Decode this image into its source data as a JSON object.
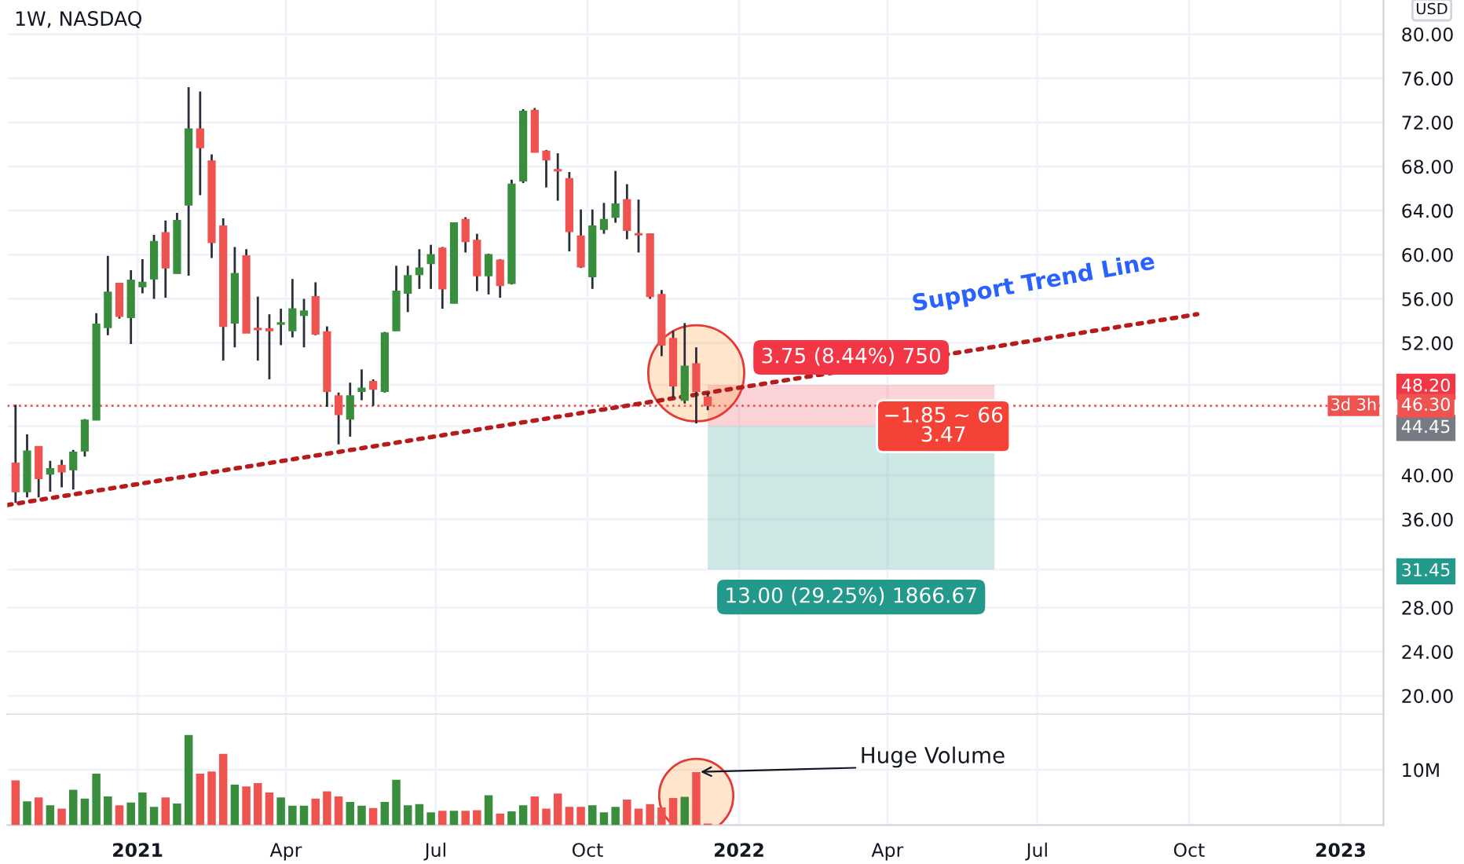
{
  "chart_data": [
    {
      "type": "candlestick",
      "title": "1W, NASDAQ",
      "x": [
        "2020-10-19",
        "2020-10-26",
        "2020-11-02",
        "2020-11-09",
        "2020-11-16",
        "2020-11-23",
        "2020-11-30",
        "2020-12-07",
        "2020-12-14",
        "2020-12-21",
        "2020-12-28",
        "2021-01-04",
        "2021-01-11",
        "2021-01-18",
        "2021-01-25",
        "2021-02-01",
        "2021-02-08",
        "2021-02-15",
        "2021-02-22",
        "2021-03-01",
        "2021-03-08",
        "2021-03-15",
        "2021-03-22",
        "2021-03-29",
        "2021-04-05",
        "2021-04-12",
        "2021-04-19",
        "2021-04-26",
        "2021-05-03",
        "2021-05-10",
        "2021-05-17",
        "2021-05-24",
        "2021-05-31",
        "2021-06-07",
        "2021-06-14",
        "2021-06-21",
        "2021-06-28",
        "2021-07-05",
        "2021-07-12",
        "2021-07-19",
        "2021-07-26",
        "2021-08-02",
        "2021-08-09",
        "2021-08-16",
        "2021-08-23",
        "2021-08-30",
        "2021-09-06",
        "2021-09-13",
        "2021-09-20",
        "2021-09-27",
        "2021-10-04",
        "2021-10-11",
        "2021-10-18",
        "2021-10-25",
        "2021-11-01",
        "2021-11-08",
        "2021-11-15",
        "2021-11-22",
        "2021-11-29",
        "2021-12-06",
        "2021-12-13"
      ],
      "ohlc": [
        [
          41.1,
          46.4,
          37.5,
          38.5
        ],
        [
          38.5,
          43.7,
          38.0,
          42.2
        ],
        [
          42.6,
          42.6,
          38.0,
          39.7
        ],
        [
          40.1,
          41.3,
          38.5,
          40.6
        ],
        [
          40.9,
          41.4,
          38.9,
          40.3
        ],
        [
          40.5,
          42.3,
          38.7,
          42.1
        ],
        [
          42.2,
          45.1,
          41.7,
          45.0
        ],
        [
          45.0,
          54.7,
          45.0,
          53.7
        ],
        [
          53.4,
          59.9,
          52.7,
          56.6
        ],
        [
          57.4,
          57.4,
          54.2,
          54.4
        ],
        [
          54.3,
          58.6,
          51.9,
          57.7
        ],
        [
          57.1,
          59.6,
          56.5,
          57.5
        ],
        [
          57.8,
          61.8,
          56.0,
          61.2
        ],
        [
          62.0,
          63.1,
          56.1,
          58.8
        ],
        [
          58.3,
          63.8,
          58.3,
          63.1
        ],
        [
          64.5,
          75.2,
          58.1,
          71.4
        ],
        [
          71.4,
          74.8,
          65.4,
          69.7
        ],
        [
          68.5,
          69.1,
          59.7,
          61.1
        ],
        [
          62.6,
          63.3,
          50.4,
          53.5
        ],
        [
          53.8,
          60.7,
          51.6,
          58.3
        ],
        [
          59.9,
          60.5,
          52.9,
          52.9
        ],
        [
          53.3,
          56.2,
          50.4,
          53.2
        ],
        [
          53.3,
          54.6,
          48.7,
          53.1
        ],
        [
          53.7,
          55.1,
          51.8,
          53.8
        ],
        [
          53.1,
          57.8,
          52.5,
          55.1
        ],
        [
          54.5,
          56.0,
          51.6,
          54.9
        ],
        [
          56.2,
          57.5,
          52.7,
          52.8
        ],
        [
          53.0,
          53.5,
          46.2,
          47.6
        ],
        [
          47.2,
          47.5,
          42.8,
          45.5
        ],
        [
          45.1,
          48.4,
          43.5,
          47.2
        ],
        [
          47.6,
          49.6,
          46.8,
          47.9
        ],
        [
          48.5,
          48.7,
          46.3,
          47.8
        ],
        [
          47.6,
          53.0,
          47.5,
          52.9
        ],
        [
          53.1,
          59.0,
          53.1,
          56.7
        ],
        [
          56.5,
          59.0,
          54.8,
          58.1
        ],
        [
          58.2,
          60.5,
          56.9,
          58.8
        ],
        [
          59.2,
          60.9,
          56.9,
          60.0
        ],
        [
          60.6,
          60.7,
          55.1,
          56.9
        ],
        [
          55.6,
          62.9,
          55.6,
          62.9
        ],
        [
          63.2,
          63.4,
          60.2,
          61.2
        ],
        [
          61.3,
          61.9,
          56.7,
          58.1
        ],
        [
          58.1,
          60.1,
          56.4,
          60.0
        ],
        [
          59.5,
          59.6,
          56.1,
          57.2
        ],
        [
          57.4,
          66.8,
          57.3,
          66.4
        ],
        [
          66.7,
          73.2,
          66.5,
          73.0
        ],
        [
          73.1,
          73.3,
          69.3,
          69.3
        ],
        [
          69.4,
          69.5,
          66.1,
          68.6
        ],
        [
          67.7,
          69.2,
          64.9,
          67.6
        ],
        [
          66.9,
          67.5,
          60.3,
          62.1
        ],
        [
          61.7,
          64.1,
          58.8,
          58.9
        ],
        [
          58.0,
          64.1,
          56.9,
          62.6
        ],
        [
          62.3,
          64.7,
          61.9,
          63.2
        ],
        [
          63.4,
          67.6,
          62.9,
          64.6
        ],
        [
          65.0,
          66.4,
          61.4,
          62.2
        ],
        [
          61.9,
          65.0,
          60.2,
          61.8
        ],
        [
          61.9,
          61.9,
          56.0,
          56.2
        ],
        [
          56.4,
          56.8,
          50.8,
          51.8
        ],
        [
          52.4,
          53.1,
          47.0,
          48.1
        ],
        [
          46.8,
          53.8,
          46.5,
          49.9
        ],
        [
          50.1,
          51.6,
          44.7,
          47.6
        ],
        [
          47.1,
          47.5,
          45.9,
          46.3
        ]
      ],
      "colors": [
        "#ef5350",
        "#388e3c",
        "#ef5350",
        "#388e3c",
        "#ef5350",
        "#388e3c",
        "#388e3c",
        "#388e3c",
        "#388e3c",
        "#ef5350",
        "#388e3c",
        "#388e3c",
        "#388e3c",
        "#ef5350",
        "#388e3c",
        "#388e3c",
        "#ef5350",
        "#ef5350",
        "#ef5350",
        "#388e3c",
        "#ef5350",
        "#ef5350",
        "#ef5350",
        "#388e3c",
        "#388e3c",
        "#388e3c",
        "#ef5350",
        "#ef5350",
        "#ef5350",
        "#388e3c",
        "#388e3c",
        "#ef5350",
        "#388e3c",
        "#388e3c",
        "#388e3c",
        "#388e3c",
        "#388e3c",
        "#ef5350",
        "#388e3c",
        "#ef5350",
        "#ef5350",
        "#388e3c",
        "#ef5350",
        "#388e3c",
        "#388e3c",
        "#ef5350",
        "#ef5350",
        "#ef5350",
        "#ef5350",
        "#ef5350",
        "#388e3c",
        "#388e3c",
        "#388e3c",
        "#ef5350",
        "#ef5350",
        "#ef5350",
        "#ef5350",
        "#ef5350",
        "#388e3c",
        "#ef5350",
        "#ef5350"
      ],
      "series": [
        {
          "type": "line",
          "x": [
            "2020-10-14",
            "2022-10-06"
          ],
          "values": [
            37.3,
            54.6
          ],
          "color": "#b71c1c",
          "line_style": "dotted"
        },
        {
          "type": "bar",
          "name": "3.75 (8.44%) 750",
          "x": [
            "2022-03-10"
          ],
          "base": [
            44.45
          ],
          "values": [
            3.75
          ],
          "color": "#f23645"
        },
        {
          "type": "bar",
          "name": "13.00 (29.25%) 1866.67",
          "x": [
            "2022-03-10"
          ],
          "base": [
            31.45
          ],
          "values": [
            13.0
          ],
          "color": "#22998a"
        }
      ],
      "xlim": [
        "2020-10-14",
        "2023-01-27"
      ],
      "xticks": [
        "2021-01-01",
        "2021-04-01",
        "2021-07-01",
        "2021-10-01",
        "2022-01-01",
        "2022-04-01",
        "2022-07-01",
        "2022-10-01",
        "2023-01-01"
      ],
      "ylim": [
        18.3,
        83.1
      ],
      "yticks": [
        {
          "value": 20,
          "label": "20.00"
        },
        {
          "value": 24,
          "label": "24.00"
        },
        {
          "value": 28,
          "label": "28.00"
        },
        {
          "value": 31.45,
          "label": "31.45"
        },
        {
          "value": 36,
          "label": "36.00"
        },
        {
          "value": 40,
          "label": "40.00"
        },
        {
          "value": 44.45,
          "label": "44.45"
        },
        {
          "value": 48.2,
          "label": "48.20"
        },
        {
          "value": 52,
          "label": "52.00"
        },
        {
          "value": 56,
          "label": "56.00"
        },
        {
          "value": 60,
          "label": "60.00"
        },
        {
          "value": 64,
          "label": "64.00"
        },
        {
          "value": 68,
          "label": "68.00"
        },
        {
          "value": 72,
          "label": "72.00"
        },
        {
          "value": 76,
          "label": "76.00"
        },
        {
          "value": 80,
          "label": "80.00"
        }
      ],
      "ref_lines": [
        {
          "axis": "y",
          "value": 46.3,
          "label": "46.30",
          "color": "#ef5350",
          "line_style": "dotted"
        }
      ],
      "annotations": [
        "Support Trend Line",
        {
          "text": "−1.85 ~ 66\n3.47",
          "x": "2022-05-05",
          "y": 44.45
        },
        "3d 3h",
        "USD"
      ],
      "grid": true,
      "tick_labels": "y"
    },
    {
      "type": "bar",
      "x": [
        "2020-10-19",
        "2020-10-26",
        "2020-11-02",
        "2020-11-09",
        "2020-11-16",
        "2020-11-23",
        "2020-11-30",
        "2020-12-07",
        "2020-12-14",
        "2020-12-21",
        "2020-12-28",
        "2021-01-04",
        "2021-01-11",
        "2021-01-18",
        "2021-01-25",
        "2021-02-01",
        "2021-02-08",
        "2021-02-15",
        "2021-02-22",
        "2021-03-01",
        "2021-03-08",
        "2021-03-15",
        "2021-03-22",
        "2021-03-29",
        "2021-04-05",
        "2021-04-12",
        "2021-04-19",
        "2021-04-26",
        "2021-05-03",
        "2021-05-10",
        "2021-05-17",
        "2021-05-24",
        "2021-05-31",
        "2021-06-07",
        "2021-06-14",
        "2021-06-21",
        "2021-06-28",
        "2021-07-05",
        "2021-07-12",
        "2021-07-19",
        "2021-07-26",
        "2021-08-02",
        "2021-08-09",
        "2021-08-16",
        "2021-08-23",
        "2021-08-30",
        "2021-09-06",
        "2021-09-13",
        "2021-09-20",
        "2021-09-27",
        "2021-10-04",
        "2021-10-11",
        "2021-10-18",
        "2021-10-25",
        "2021-11-01",
        "2021-11-08",
        "2021-11-15",
        "2021-11-22",
        "2021-11-29",
        "2021-12-06",
        "2021-12-13"
      ],
      "values": [
        8.1,
        4.3,
        5.0,
        3.6,
        3.0,
        6.4,
        4.8,
        9.3,
        5.2,
        3.6,
        4.1,
        5.9,
        3.3,
        5.0,
        3.9,
        16.3,
        9.3,
        9.7,
        12.9,
        7.3,
        7.0,
        7.6,
        5.9,
        5.0,
        3.5,
        3.5,
        4.8,
        6.1,
        5.2,
        4.2,
        3.5,
        3.1,
        4.2,
        8.2,
        3.6,
        3.8,
        2.3,
        2.6,
        2.6,
        2.6,
        2.7,
        5.4,
        2.1,
        2.5,
        3.6,
        5.2,
        3.0,
        5.7,
        3.3,
        3.3,
        3.6,
        2.3,
        3.3,
        4.6,
        3.0,
        3.8,
        3.2,
        4.9,
        5.1,
        9.6,
        0.3
      ],
      "colors": [
        "#ef5350",
        "#388e3c",
        "#ef5350",
        "#388e3c",
        "#ef5350",
        "#388e3c",
        "#388e3c",
        "#388e3c",
        "#388e3c",
        "#ef5350",
        "#388e3c",
        "#388e3c",
        "#388e3c",
        "#ef5350",
        "#388e3c",
        "#388e3c",
        "#ef5350",
        "#ef5350",
        "#ef5350",
        "#388e3c",
        "#ef5350",
        "#ef5350",
        "#ef5350",
        "#388e3c",
        "#388e3c",
        "#388e3c",
        "#ef5350",
        "#ef5350",
        "#ef5350",
        "#388e3c",
        "#388e3c",
        "#ef5350",
        "#388e3c",
        "#388e3c",
        "#388e3c",
        "#388e3c",
        "#388e3c",
        "#ef5350",
        "#388e3c",
        "#ef5350",
        "#ef5350",
        "#388e3c",
        "#ef5350",
        "#388e3c",
        "#388e3c",
        "#ef5350",
        "#ef5350",
        "#ef5350",
        "#ef5350",
        "#ef5350",
        "#388e3c",
        "#388e3c",
        "#388e3c",
        "#ef5350",
        "#ef5350",
        "#ef5350",
        "#ef5350",
        "#ef5350",
        "#388e3c",
        "#ef5350",
        "#ef5350"
      ],
      "xlim": [
        "2020-10-14",
        "2023-01-27"
      ],
      "xticks": [
        {
          "value": "2021-01-01",
          "label": "2021"
        },
        {
          "value": "2021-04-01",
          "label": "Apr"
        },
        {
          "value": "2021-07-01",
          "label": "Jul"
        },
        {
          "value": "2021-10-01",
          "label": "Oct"
        },
        {
          "value": "2022-01-01",
          "label": "2022"
        },
        {
          "value": "2022-04-01",
          "label": "Apr"
        },
        {
          "value": "2022-07-01",
          "label": "Jul"
        },
        {
          "value": "2022-10-01",
          "label": "Oct"
        },
        {
          "value": "2023-01-01",
          "label": "2023"
        }
      ],
      "ylim": [
        0,
        20
      ],
      "yticks": [
        {
          "value": 0,
          "label": null
        },
        {
          "value": 10,
          "label": "10M"
        }
      ],
      "annotations": [
        {
          "text": "Huge Volume",
          "x": "2021-12-06",
          "y": 9.6
        }
      ],
      "grid": true
    }
  ]
}
